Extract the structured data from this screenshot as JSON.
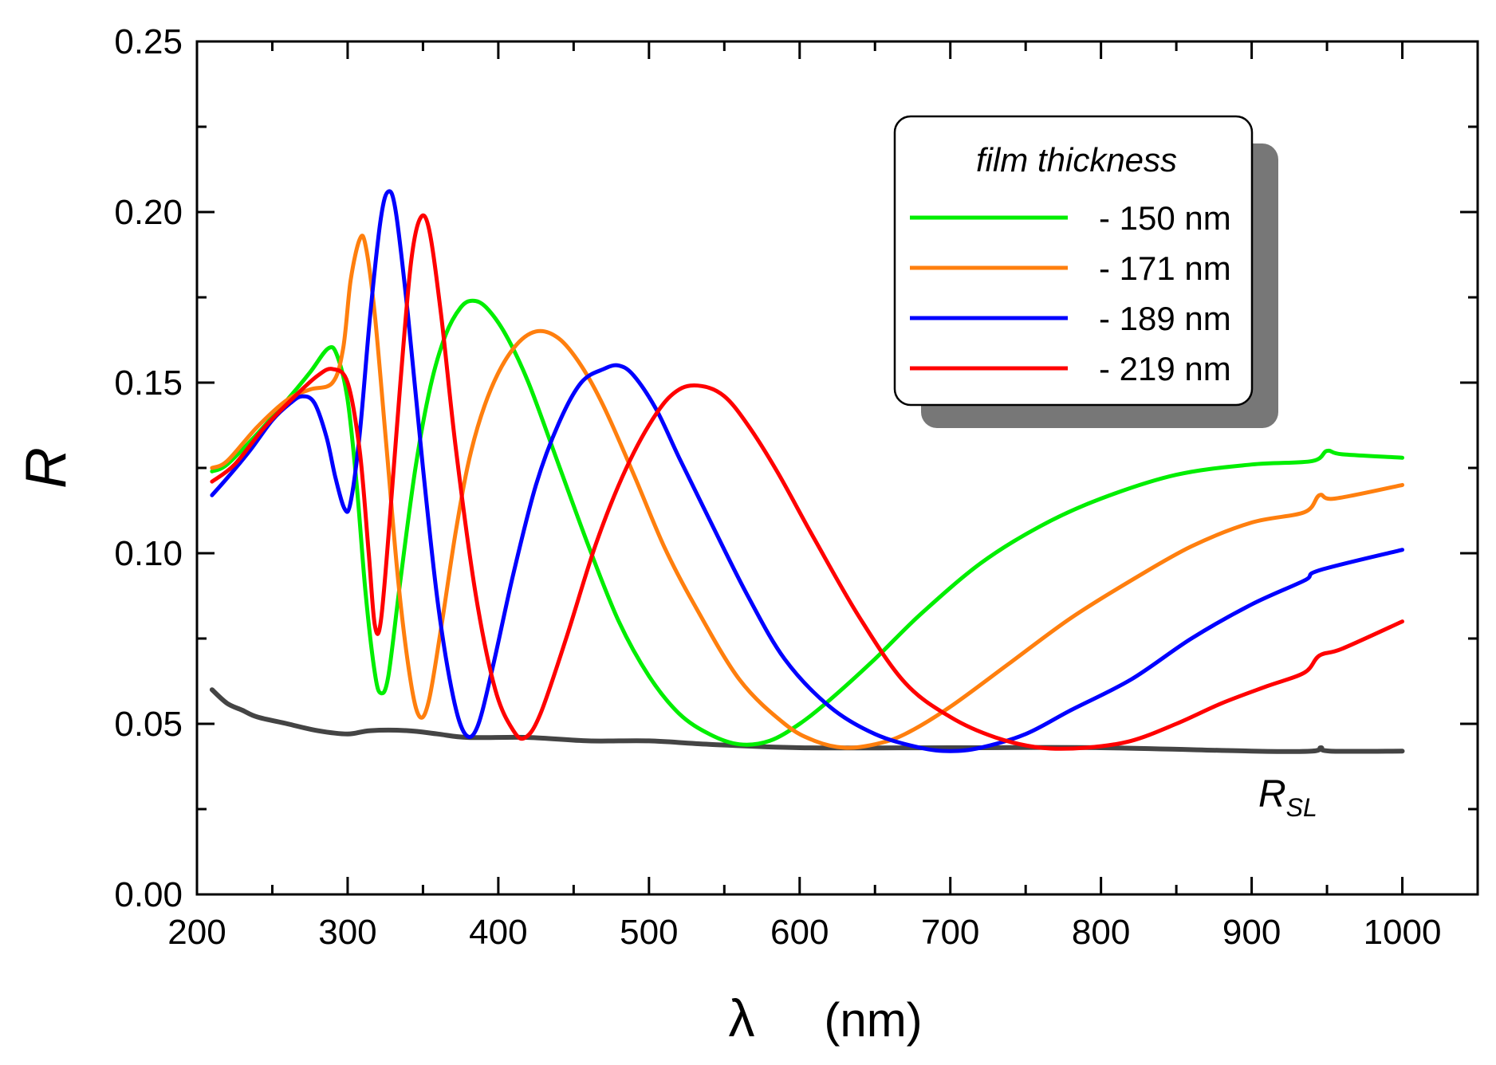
{
  "chart_data": {
    "type": "line",
    "xlabel_symbol": "λ",
    "xlabel_unit": "(nm)",
    "ylabel": "R",
    "xlim": [
      200,
      1050
    ],
    "ylim": [
      0,
      0.25
    ],
    "x_ticks": [
      "200",
      "300",
      "400",
      "500",
      "600",
      "700",
      "800",
      "900",
      "1000"
    ],
    "y_ticks": [
      "0.00",
      "0.05",
      "0.10",
      "0.15",
      "0.20",
      "0.25"
    ],
    "legend": {
      "title": "film thickness",
      "placement": "top-right"
    },
    "annotation": {
      "main": "R",
      "subscript": "SL"
    },
    "series": [
      {
        "name": "- 150 nm",
        "color": "#00ee00",
        "points": [
          [
            210,
            0.124
          ],
          [
            220,
            0.126
          ],
          [
            240,
            0.135
          ],
          [
            260,
            0.145
          ],
          [
            275,
            0.153
          ],
          [
            287,
            0.16
          ],
          [
            293,
            0.158
          ],
          [
            300,
            0.145
          ],
          [
            306,
            0.12
          ],
          [
            312,
            0.088
          ],
          [
            318,
            0.065
          ],
          [
            322,
            0.059
          ],
          [
            327,
            0.064
          ],
          [
            335,
            0.092
          ],
          [
            345,
            0.125
          ],
          [
            355,
            0.149
          ],
          [
            365,
            0.164
          ],
          [
            375,
            0.172
          ],
          [
            383,
            0.174
          ],
          [
            392,
            0.172
          ],
          [
            405,
            0.164
          ],
          [
            420,
            0.15
          ],
          [
            440,
            0.126
          ],
          [
            460,
            0.102
          ],
          [
            480,
            0.08
          ],
          [
            500,
            0.064
          ],
          [
            520,
            0.053
          ],
          [
            540,
            0.047
          ],
          [
            560,
            0.044
          ],
          [
            580,
            0.045
          ],
          [
            600,
            0.05
          ],
          [
            620,
            0.057
          ],
          [
            650,
            0.069
          ],
          [
            680,
            0.082
          ],
          [
            720,
            0.097
          ],
          [
            760,
            0.108
          ],
          [
            800,
            0.116
          ],
          [
            850,
            0.123
          ],
          [
            900,
            0.126
          ],
          [
            940,
            0.127
          ],
          [
            950,
            0.13
          ],
          [
            960,
            0.129
          ],
          [
            1000,
            0.128
          ]
        ]
      },
      {
        "name": "- 171 nm",
        "color": "#ff7f0e",
        "points": [
          [
            210,
            0.125
          ],
          [
            220,
            0.127
          ],
          [
            240,
            0.137
          ],
          [
            260,
            0.145
          ],
          [
            275,
            0.148
          ],
          [
            290,
            0.15
          ],
          [
            297,
            0.16
          ],
          [
            302,
            0.18
          ],
          [
            308,
            0.192
          ],
          [
            312,
            0.19
          ],
          [
            318,
            0.17
          ],
          [
            326,
            0.13
          ],
          [
            334,
            0.09
          ],
          [
            342,
            0.062
          ],
          [
            348,
            0.052
          ],
          [
            354,
            0.057
          ],
          [
            362,
            0.078
          ],
          [
            372,
            0.107
          ],
          [
            382,
            0.13
          ],
          [
            395,
            0.148
          ],
          [
            410,
            0.16
          ],
          [
            425,
            0.165
          ],
          [
            440,
            0.163
          ],
          [
            455,
            0.155
          ],
          [
            470,
            0.143
          ],
          [
            490,
            0.123
          ],
          [
            510,
            0.102
          ],
          [
            530,
            0.085
          ],
          [
            560,
            0.063
          ],
          [
            590,
            0.05
          ],
          [
            610,
            0.045
          ],
          [
            630,
            0.043
          ],
          [
            650,
            0.044
          ],
          [
            670,
            0.047
          ],
          [
            700,
            0.055
          ],
          [
            740,
            0.068
          ],
          [
            780,
            0.081
          ],
          [
            820,
            0.092
          ],
          [
            860,
            0.102
          ],
          [
            900,
            0.109
          ],
          [
            935,
            0.112
          ],
          [
            945,
            0.117
          ],
          [
            955,
            0.116
          ],
          [
            1000,
            0.12
          ]
        ]
      },
      {
        "name": "- 189 nm",
        "color": "#0000ff",
        "points": [
          [
            210,
            0.117
          ],
          [
            220,
            0.122
          ],
          [
            235,
            0.13
          ],
          [
            250,
            0.139
          ],
          [
            262,
            0.144
          ],
          [
            270,
            0.146
          ],
          [
            278,
            0.144
          ],
          [
            286,
            0.134
          ],
          [
            292,
            0.122
          ],
          [
            298,
            0.113
          ],
          [
            302,
            0.115
          ],
          [
            308,
            0.135
          ],
          [
            315,
            0.17
          ],
          [
            322,
            0.198
          ],
          [
            327,
            0.206
          ],
          [
            332,
            0.2
          ],
          [
            340,
            0.17
          ],
          [
            350,
            0.125
          ],
          [
            360,
            0.085
          ],
          [
            370,
            0.058
          ],
          [
            378,
            0.047
          ],
          [
            386,
            0.049
          ],
          [
            396,
            0.066
          ],
          [
            410,
            0.094
          ],
          [
            425,
            0.12
          ],
          [
            440,
            0.138
          ],
          [
            455,
            0.15
          ],
          [
            470,
            0.154
          ],
          [
            480,
            0.155
          ],
          [
            490,
            0.152
          ],
          [
            505,
            0.142
          ],
          [
            520,
            0.128
          ],
          [
            540,
            0.11
          ],
          [
            565,
            0.088
          ],
          [
            590,
            0.069
          ],
          [
            620,
            0.055
          ],
          [
            650,
            0.047
          ],
          [
            680,
            0.043
          ],
          [
            700,
            0.042
          ],
          [
            720,
            0.043
          ],
          [
            750,
            0.047
          ],
          [
            780,
            0.054
          ],
          [
            820,
            0.063
          ],
          [
            860,
            0.075
          ],
          [
            900,
            0.085
          ],
          [
            935,
            0.092
          ],
          [
            945,
            0.095
          ],
          [
            1000,
            0.101
          ]
        ]
      },
      {
        "name": "- 219 nm",
        "color": "#ff0000",
        "points": [
          [
            210,
            0.121
          ],
          [
            225,
            0.126
          ],
          [
            245,
            0.137
          ],
          [
            265,
            0.146
          ],
          [
            280,
            0.152
          ],
          [
            290,
            0.154
          ],
          [
            300,
            0.15
          ],
          [
            308,
            0.13
          ],
          [
            314,
            0.1
          ],
          [
            318,
            0.079
          ],
          [
            322,
            0.08
          ],
          [
            328,
            0.11
          ],
          [
            335,
            0.15
          ],
          [
            342,
            0.185
          ],
          [
            348,
            0.198
          ],
          [
            354,
            0.195
          ],
          [
            362,
            0.17
          ],
          [
            372,
            0.13
          ],
          [
            385,
            0.088
          ],
          [
            398,
            0.06
          ],
          [
            410,
            0.048
          ],
          [
            418,
            0.046
          ],
          [
            428,
            0.053
          ],
          [
            445,
            0.075
          ],
          [
            465,
            0.103
          ],
          [
            485,
            0.125
          ],
          [
            505,
            0.141
          ],
          [
            520,
            0.148
          ],
          [
            535,
            0.149
          ],
          [
            550,
            0.146
          ],
          [
            565,
            0.138
          ],
          [
            585,
            0.124
          ],
          [
            610,
            0.104
          ],
          [
            640,
            0.081
          ],
          [
            670,
            0.062
          ],
          [
            700,
            0.052
          ],
          [
            730,
            0.046
          ],
          [
            760,
            0.043
          ],
          [
            790,
            0.043
          ],
          [
            820,
            0.045
          ],
          [
            850,
            0.05
          ],
          [
            880,
            0.056
          ],
          [
            910,
            0.061
          ],
          [
            935,
            0.065
          ],
          [
            945,
            0.07
          ],
          [
            960,
            0.072
          ],
          [
            1000,
            0.08
          ]
        ]
      },
      {
        "name": "R_SL",
        "color": "#444444",
        "points": [
          [
            210,
            0.06
          ],
          [
            220,
            0.056
          ],
          [
            230,
            0.054
          ],
          [
            240,
            0.052
          ],
          [
            260,
            0.05
          ],
          [
            280,
            0.048
          ],
          [
            300,
            0.047
          ],
          [
            315,
            0.048
          ],
          [
            340,
            0.048
          ],
          [
            360,
            0.047
          ],
          [
            380,
            0.046
          ],
          [
            420,
            0.046
          ],
          [
            460,
            0.045
          ],
          [
            500,
            0.045
          ],
          [
            540,
            0.044
          ],
          [
            600,
            0.043
          ],
          [
            700,
            0.043
          ],
          [
            800,
            0.043
          ],
          [
            900,
            0.042
          ],
          [
            940,
            0.042
          ],
          [
            946,
            0.043
          ],
          [
            952,
            0.042
          ],
          [
            1000,
            0.042
          ]
        ]
      }
    ]
  }
}
